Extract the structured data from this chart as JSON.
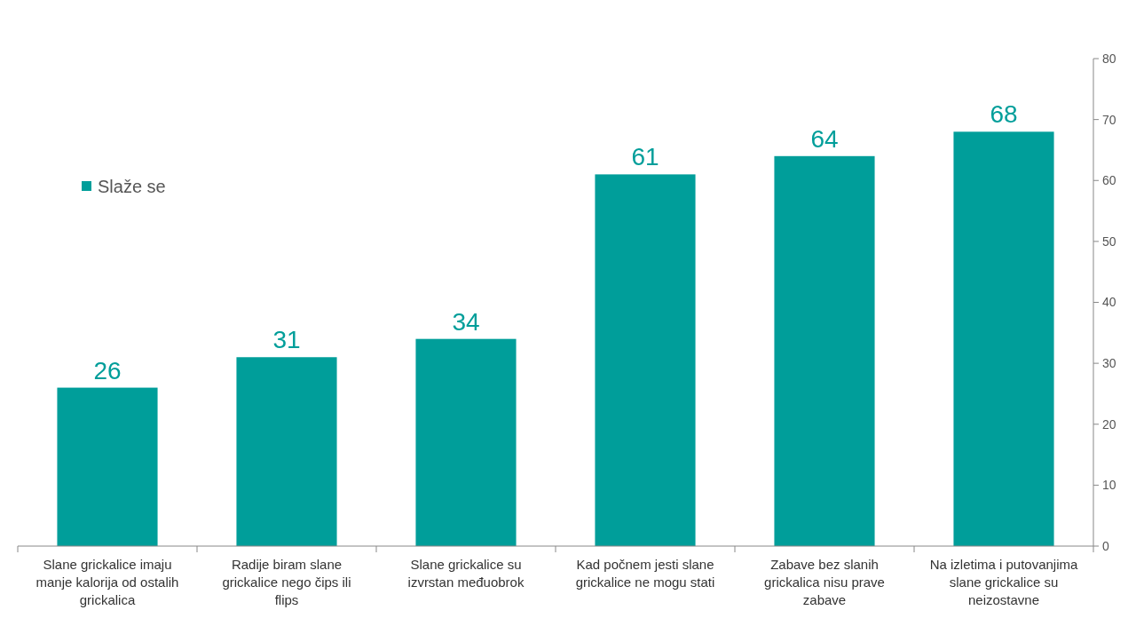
{
  "chart_data": {
    "type": "bar",
    "categories": [
      "Slane grickalice imaju manje kalorija od ostalih grickalica",
      "Radije biram slane grickalice nego čips ili flips",
      "Slane grickalice su izvrstan međuobrok",
      "Kad počnem jesti slane grickalice ne mogu stati",
      "Zabave bez slanih grickalica nisu prave zabave",
      "Na izletima i putovanjima slane grickalice su neizostavne"
    ],
    "series": [
      {
        "name": "Slaže se",
        "color": "#009e9a",
        "values": [
          26,
          31,
          34,
          61,
          64,
          68
        ]
      }
    ],
    "ylim": [
      0,
      80
    ],
    "yticks": [
      0,
      10,
      20,
      30,
      40,
      50,
      60,
      70,
      80
    ],
    "data_labels": true,
    "legend": "top left",
    "grid": false
  }
}
